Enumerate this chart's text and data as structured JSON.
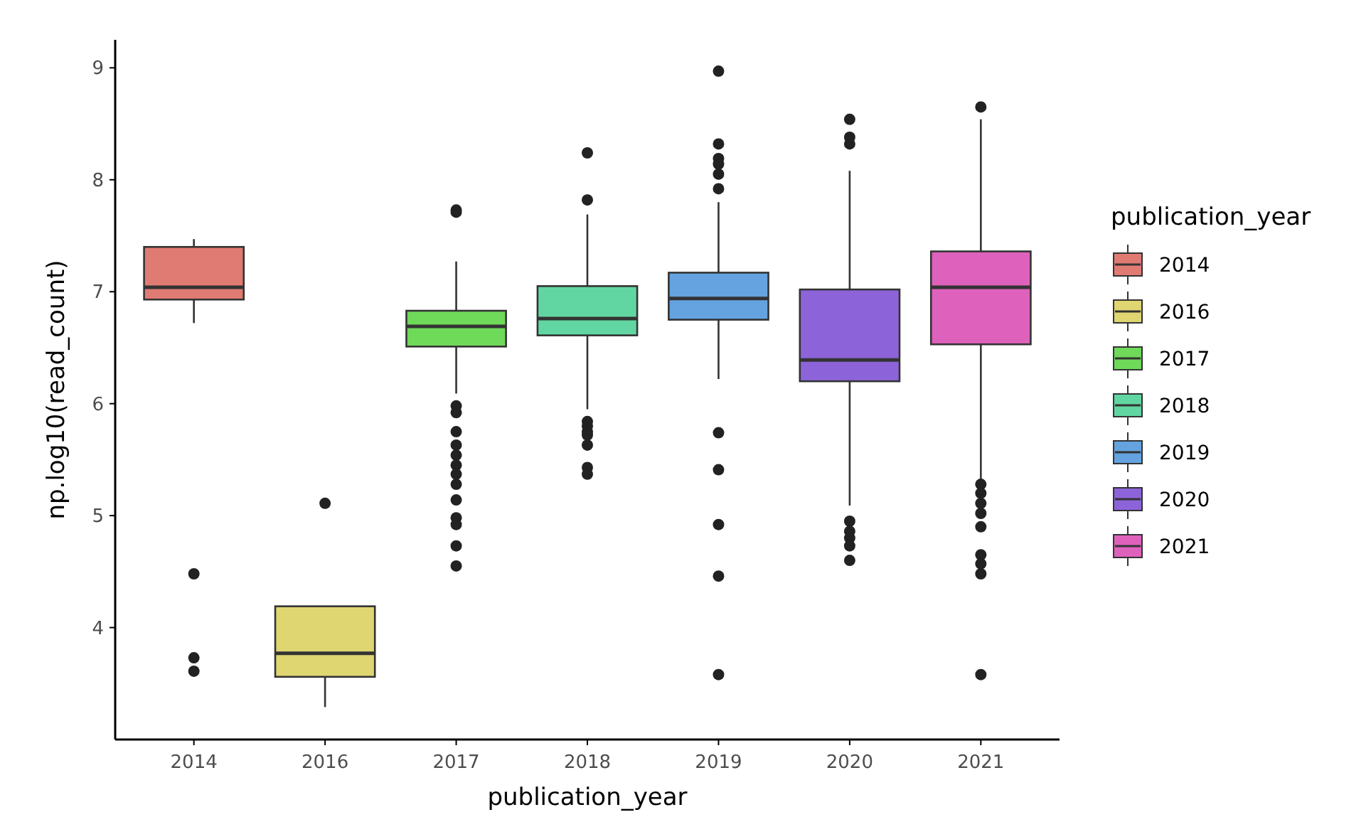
{
  "chart_data": {
    "type": "box",
    "xlabel": "publication_year",
    "ylabel": "np.log10(read_count)",
    "legend_title": "publication_year",
    "legend": "right",
    "grid": false,
    "categories": [
      "2014",
      "2016",
      "2017",
      "2018",
      "2019",
      "2020",
      "2021"
    ],
    "ylim": [
      3.0,
      9.25
    ],
    "yticks": [
      4,
      5,
      6,
      7,
      8,
      9
    ],
    "series": [
      {
        "name": "2014",
        "color": "#e07b73",
        "boxes": [
          {
            "low": 6.72,
            "q1": 6.93,
            "median": 7.04,
            "q3": 7.4,
            "high": 7.47,
            "outliers": [
              4.48,
              3.73,
              3.61
            ]
          },
          null,
          null,
          null,
          null,
          null,
          null
        ]
      },
      {
        "name": "2016",
        "color": "#dfd672",
        "boxes": [
          null,
          {
            "low": 3.29,
            "q1": 3.56,
            "median": 3.77,
            "q3": 4.19,
            "high": 4.19,
            "outliers": [
              5.11
            ]
          },
          null,
          null,
          null,
          null,
          null
        ]
      },
      {
        "name": "2017",
        "color": "#6fd95a",
        "boxes": [
          null,
          null,
          {
            "low": 6.09,
            "q1": 6.51,
            "median": 6.69,
            "q3": 6.83,
            "high": 7.27,
            "outliers": [
              7.73,
              7.71,
              5.98,
              5.92,
              5.75,
              5.63,
              5.54,
              5.45,
              5.37,
              5.28,
              5.14,
              4.98,
              4.92,
              4.73,
              4.55
            ]
          },
          null,
          null,
          null,
          null
        ]
      },
      {
        "name": "2018",
        "color": "#62d6a2",
        "boxes": [
          null,
          null,
          null,
          {
            "low": 5.95,
            "q1": 6.61,
            "median": 6.76,
            "q3": 7.05,
            "high": 7.69,
            "outliers": [
              8.24,
              7.82,
              5.84,
              5.8,
              5.75,
              5.72,
              5.63,
              5.43,
              5.37
            ]
          },
          null,
          null,
          null
        ]
      },
      {
        "name": "2019",
        "color": "#64a3e0",
        "boxes": [
          null,
          null,
          null,
          null,
          {
            "low": 6.22,
            "q1": 6.75,
            "median": 6.94,
            "q3": 7.17,
            "high": 7.8,
            "outliers": [
              8.97,
              8.32,
              8.19,
              8.14,
              8.05,
              7.92,
              5.74,
              5.41,
              4.92,
              4.46,
              3.58
            ]
          },
          null,
          null
        ]
      },
      {
        "name": "2020",
        "color": "#8d63d9",
        "boxes": [
          null,
          null,
          null,
          null,
          null,
          {
            "low": 5.09,
            "q1": 6.2,
            "median": 6.39,
            "q3": 7.02,
            "high": 8.08,
            "outliers": [
              8.54,
              8.38,
              8.32,
              4.95,
              4.86,
              4.8,
              4.73,
              4.6
            ]
          },
          null
        ]
      },
      {
        "name": "2021",
        "color": "#de62bc",
        "boxes": [
          null,
          null,
          null,
          null,
          null,
          null,
          {
            "low": 5.32,
            "q1": 6.53,
            "median": 7.04,
            "q3": 7.36,
            "high": 8.54,
            "outliers": [
              8.65,
              5.28,
              5.2,
              5.11,
              5.02,
              4.9,
              4.65,
              4.57,
              4.48,
              3.58
            ]
          }
        ]
      }
    ]
  }
}
